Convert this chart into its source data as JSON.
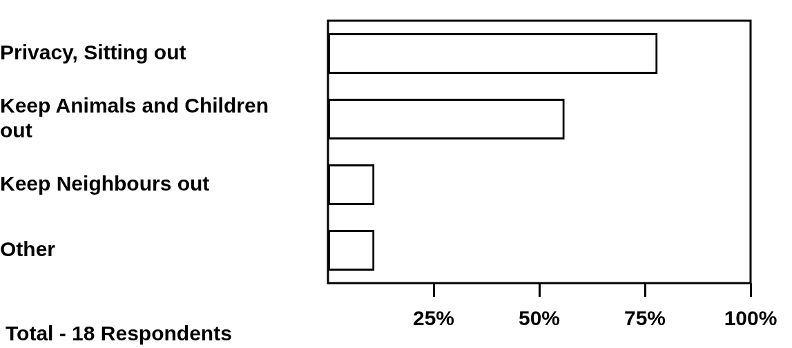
{
  "chart_data": {
    "type": "bar",
    "orientation": "horizontal",
    "categories": [
      "Privacy, Sitting out",
      "Keep Animals and Children out",
      "Keep Neighbours out",
      "Other"
    ],
    "values": [
      78,
      56,
      11,
      11
    ],
    "color": "#000000",
    "xlim": [
      0,
      100
    ],
    "xticks": [
      {
        "value": 25,
        "label": "25%"
      },
      {
        "value": 50,
        "label": "50%"
      },
      {
        "value": 75,
        "label": "75%"
      },
      {
        "value": 100,
        "label": "100%"
      }
    ],
    "annotations": [
      "Total - 18 Respondents"
    ],
    "grid": false,
    "legend": false
  }
}
